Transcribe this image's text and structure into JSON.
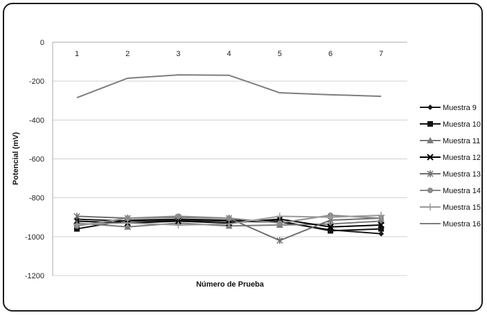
{
  "chart_data": {
    "type": "line",
    "title": "",
    "xlabel": "Número de Prueba",
    "ylabel": "Potencial (mV)",
    "ylim": [
      -1200,
      0
    ],
    "yticks": [
      0,
      -200,
      -400,
      -600,
      -800,
      -1000,
      -1200
    ],
    "x": [
      1,
      2,
      3,
      4,
      5,
      6,
      7
    ],
    "x_axis_position": "top",
    "grid": "horizontal",
    "legend_position": "right",
    "series": [
      {
        "name": "Muestra 9",
        "values": [
          -910,
          -920,
          -915,
          -920,
          -925,
          -965,
          -985
        ],
        "color": "#1a1a1a",
        "marker": "diamond"
      },
      {
        "name": "Muestra 10",
        "values": [
          -960,
          -915,
          -910,
          -915,
          -920,
          -970,
          -960
        ],
        "color": "#111111",
        "marker": "square"
      },
      {
        "name": "Muestra 11",
        "values": [
          -930,
          -950,
          -930,
          -945,
          -940,
          -935,
          -920
        ],
        "color": "#7a7a7a",
        "marker": "triangle"
      },
      {
        "name": "Muestra 12",
        "values": [
          -920,
          -930,
          -920,
          -930,
          -910,
          -950,
          -940
        ],
        "color": "#000000",
        "marker": "x"
      },
      {
        "name": "Muestra 13",
        "values": [
          -895,
          -905,
          -900,
          -905,
          -1020,
          -915,
          -905
        ],
        "color": "#6e6e6e",
        "marker": "star"
      },
      {
        "name": "Muestra 14",
        "values": [
          -945,
          -905,
          -895,
          -905,
          -930,
          -890,
          -905
        ],
        "color": "#8a8a8a",
        "marker": "circle"
      },
      {
        "name": "Muestra 15",
        "values": [
          -935,
          -930,
          -940,
          -935,
          -895,
          -900,
          -890
        ],
        "color": "#9a9a9a",
        "marker": "plus"
      },
      {
        "name": "Muestra 16",
        "values": [
          -285,
          -185,
          -168,
          -170,
          -260,
          -270,
          -278
        ],
        "color": "#7d7d7d",
        "marker": "none"
      }
    ]
  }
}
